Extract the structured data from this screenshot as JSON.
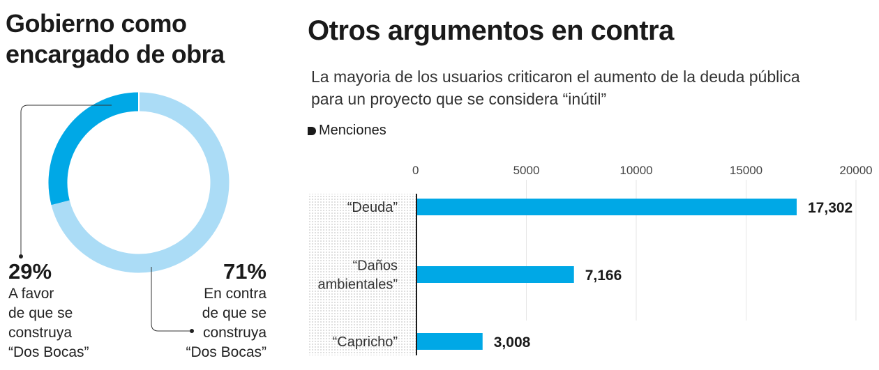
{
  "left": {
    "title_line1": "Gobierno como",
    "title_line2": "encargado de obra",
    "favor": {
      "pct": "29%",
      "lines": [
        "A favor",
        "de que se",
        "construya",
        "“Dos Bocas”"
      ]
    },
    "contra": {
      "pct": "71%",
      "lines": [
        "En contra",
        "de que se",
        "construya",
        "“Dos Bocas”"
      ]
    }
  },
  "right": {
    "title": "Otros argumentos en contra",
    "subtitle_line1": "La mayoria de los usuarios criticaron el aumento de la deuda pública",
    "subtitle_line2": "para un proyecto que se considera “inútil”",
    "legend": "Menciones"
  },
  "colors": {
    "primary": "#00a8e6",
    "light": "#abdcf6",
    "text": "#1a1a1a"
  },
  "chart_data": [
    {
      "type": "pie",
      "variant": "donut",
      "categories": [
        "A favor",
        "En contra"
      ],
      "values": [
        29,
        71
      ],
      "unit": "%"
    },
    {
      "type": "bar",
      "orientation": "horizontal",
      "categories": [
        [
          "“Deuda”"
        ],
        [
          "“Daños",
          "ambientales”"
        ],
        [
          "“Capricho”"
        ]
      ],
      "values": [
        17302,
        7166,
        3008
      ],
      "value_labels": [
        "17,302",
        "7,166",
        "3,008"
      ],
      "xlim": [
        0,
        20000
      ],
      "ticks": [
        0,
        5000,
        10000,
        15000,
        20000
      ],
      "tick_labels": [
        "0",
        "5000",
        "10000",
        "15000",
        "20000"
      ],
      "grid": true,
      "series_name": "Menciones"
    }
  ]
}
